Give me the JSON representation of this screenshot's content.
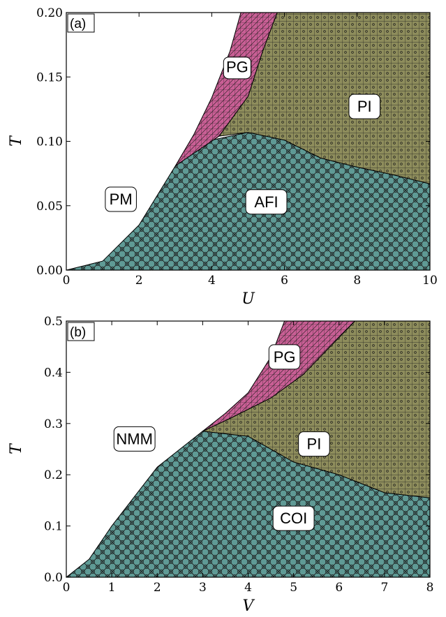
{
  "colors": {
    "AFI": "#5f9a95",
    "COI": "#5f9a95",
    "PI": "#8e8d5c",
    "PG": "#c95f95",
    "PM": "#ffffff",
    "NMM": "#ffffff"
  },
  "chart_data": [
    {
      "type": "area",
      "panel_label": "(a)",
      "xlabel": "U",
      "ylabel": "T",
      "xlim": [
        0,
        10
      ],
      "ylim": [
        0,
        0.2
      ],
      "xticks": [
        "0",
        "2",
        "4",
        "6",
        "8",
        "10"
      ],
      "yticks": [
        "0.00",
        "0.05",
        "0.10",
        "0.15",
        "0.20"
      ],
      "regions": [
        {
          "name": "AFI",
          "label": "AFI",
          "label_pos": {
            "x": 5.5,
            "y": 0.053
          },
          "boundary": [
            [
              0,
              0
            ],
            [
              1,
              0.007
            ],
            [
              2,
              0.035
            ],
            [
              3,
              0.081
            ],
            [
              4,
              0.101
            ],
            [
              5,
              0.107
            ],
            [
              6,
              0.101
            ],
            [
              7,
              0.087
            ],
            [
              8,
              0.08
            ],
            [
              9,
              0.074
            ],
            [
              10,
              0.067
            ],
            [
              10,
              0
            ],
            [
              0,
              0
            ]
          ]
        },
        {
          "name": "PI",
          "label": "PI",
          "label_pos": {
            "x": 8.2,
            "y": 0.127
          },
          "boundary": [
            [
              4.2,
              0.104
            ],
            [
              5,
              0.107
            ],
            [
              6,
              0.101
            ],
            [
              7,
              0.087
            ],
            [
              8,
              0.08
            ],
            [
              9,
              0.074
            ],
            [
              10,
              0.067
            ],
            [
              10,
              0.2
            ],
            [
              5.8,
              0.2
            ],
            [
              5.4,
              0.17
            ],
            [
              5.0,
              0.135
            ],
            [
              4.2,
              0.104
            ]
          ]
        },
        {
          "name": "PG",
          "label": "PG",
          "label_pos": {
            "x": 4.7,
            "y": 0.157
          },
          "boundary": [
            [
              3,
              0.081
            ],
            [
              3.5,
              0.105
            ],
            [
              4,
              0.134
            ],
            [
              4.5,
              0.17
            ],
            [
              4.8,
              0.2
            ],
            [
              5.8,
              0.2
            ],
            [
              5.4,
              0.17
            ],
            [
              5.0,
              0.135
            ],
            [
              4.2,
              0.104
            ],
            [
              3,
              0.081
            ]
          ]
        },
        {
          "name": "PM",
          "label": "PM",
          "label_pos": {
            "x": 1.5,
            "y": 0.055
          },
          "boundary": []
        }
      ]
    },
    {
      "type": "area",
      "panel_label": "(b)",
      "xlabel": "V",
      "ylabel": "T",
      "xlim": [
        0,
        8
      ],
      "ylim": [
        0,
        0.5
      ],
      "xticks": [
        "0",
        "1",
        "2",
        "3",
        "4",
        "5",
        "6",
        "7",
        "8"
      ],
      "yticks": [
        "0.0",
        "0.1",
        "0.2",
        "0.3",
        "0.4",
        "0.5"
      ],
      "regions": [
        {
          "name": "COI",
          "label": "COI",
          "label_pos": {
            "x": 5.0,
            "y": 0.115
          },
          "boundary": [
            [
              0,
              0
            ],
            [
              0.5,
              0.035
            ],
            [
              1,
              0.1
            ],
            [
              2,
              0.215
            ],
            [
              3,
              0.285
            ],
            [
              4,
              0.275
            ],
            [
              5,
              0.225
            ],
            [
              6,
              0.2
            ],
            [
              7,
              0.165
            ],
            [
              8,
              0.155
            ],
            [
              8,
              0
            ],
            [
              0,
              0
            ]
          ]
        },
        {
          "name": "PI",
          "label": "PI",
          "label_pos": {
            "x": 5.45,
            "y": 0.26
          },
          "boundary": [
            [
              3,
              0.285
            ],
            [
              4,
              0.275
            ],
            [
              5,
              0.225
            ],
            [
              6,
              0.2
            ],
            [
              7,
              0.165
            ],
            [
              8,
              0.155
            ],
            [
              8,
              0.5
            ],
            [
              6.35,
              0.5
            ],
            [
              5.2,
              0.395
            ],
            [
              4.5,
              0.35
            ],
            [
              3.6,
              0.31
            ],
            [
              3,
              0.285
            ]
          ]
        },
        {
          "name": "PG",
          "label": "PG",
          "label_pos": {
            "x": 4.8,
            "y": 0.43
          },
          "boundary": [
            [
              3,
              0.285
            ],
            [
              3.5,
              0.32
            ],
            [
              4,
              0.36
            ],
            [
              4.5,
              0.43
            ],
            [
              4.8,
              0.5
            ],
            [
              6.35,
              0.5
            ],
            [
              5.2,
              0.395
            ],
            [
              4.5,
              0.35
            ],
            [
              3.6,
              0.31
            ],
            [
              3,
              0.285
            ]
          ]
        },
        {
          "name": "NMM",
          "label": "NMM",
          "label_pos": {
            "x": 1.5,
            "y": 0.27
          },
          "boundary": []
        }
      ]
    }
  ]
}
